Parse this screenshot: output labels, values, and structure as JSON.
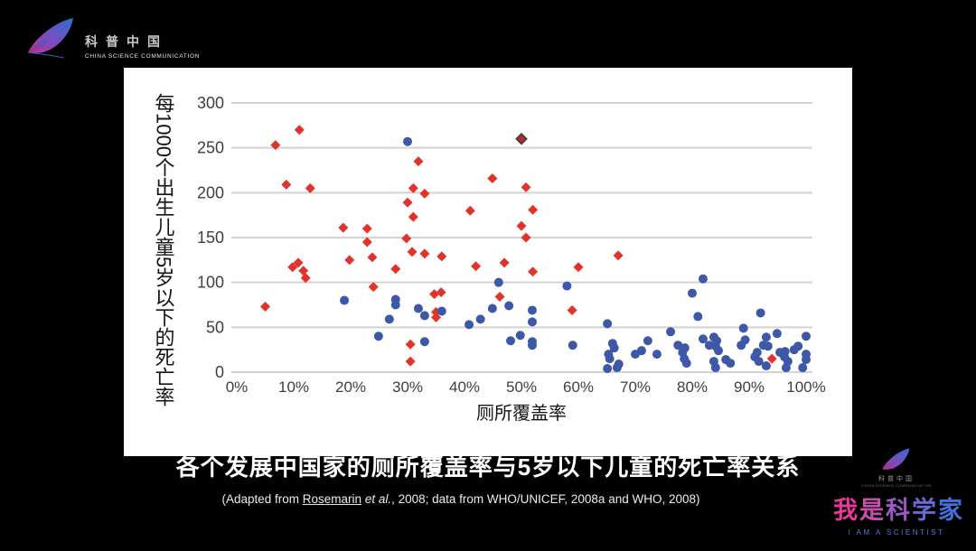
{
  "header_logo": {
    "cn": "科普中国",
    "en": "CHINA SCIENCE COMMUNICATION"
  },
  "chart_data": {
    "type": "scatter",
    "xlabel": "厕所覆盖率",
    "ylabel": "每1000个出生儿童5岁以下的死亡率",
    "x_ticks": [
      "0%",
      "10%",
      "20%",
      "30%",
      "40%",
      "50%",
      "60%",
      "70%",
      "80%",
      "90%",
      "100%"
    ],
    "y_ticks": [
      0,
      50,
      100,
      150,
      200,
      250,
      300
    ],
    "xlim": [
      0,
      100
    ],
    "ylim": [
      0,
      300
    ],
    "grid": "horizontal",
    "legend": "none",
    "grid_color": "#d3d3d3",
    "axis_text_color": "#3d3f45",
    "plot_bg": "#ffffff",
    "series": [
      {
        "name": "red-diamond",
        "marker": "diamond",
        "color": "#e2332a",
        "points": [
          [
            5,
            73
          ],
          [
            6.8,
            253
          ],
          [
            8.7,
            209
          ],
          [
            9.8,
            117
          ],
          [
            10.8,
            122
          ],
          [
            11,
            270
          ],
          [
            11.7,
            113
          ],
          [
            12.1,
            105
          ],
          [
            12.9,
            205
          ],
          [
            18.7,
            161
          ],
          [
            19.8,
            125
          ],
          [
            22.9,
            160
          ],
          [
            22.9,
            145
          ],
          [
            23.8,
            128
          ],
          [
            24,
            95
          ],
          [
            27.9,
            115
          ],
          [
            29.8,
            149
          ],
          [
            30,
            189
          ],
          [
            30.5,
            31
          ],
          [
            30.5,
            12
          ],
          [
            30.8,
            134
          ],
          [
            31,
            173
          ],
          [
            31,
            205
          ],
          [
            31.9,
            235
          ],
          [
            33,
            132
          ],
          [
            33,
            199
          ],
          [
            34.7,
            87
          ],
          [
            35,
            67
          ],
          [
            35,
            61
          ],
          [
            35.9,
            89
          ],
          [
            36,
            129
          ],
          [
            41,
            180
          ],
          [
            42,
            118
          ],
          [
            44.9,
            216
          ],
          [
            46.2,
            84
          ],
          [
            47,
            122
          ],
          [
            50,
            163
          ],
          [
            50.8,
            206
          ],
          [
            50.8,
            150
          ],
          [
            52,
            181
          ],
          [
            52,
            112
          ],
          [
            58.9,
            69
          ],
          [
            60,
            117
          ],
          [
            67,
            130
          ],
          [
            94,
            15
          ]
        ]
      },
      {
        "name": "dark-red-diamond",
        "marker": "diamond",
        "color": "#c32620",
        "stroke": "#454545",
        "points": [
          [
            50,
            260
          ]
        ]
      },
      {
        "name": "blue-circle",
        "marker": "circle",
        "color": "#3c58a7",
        "points": [
          [
            18.9,
            80
          ],
          [
            24.9,
            40
          ],
          [
            26.8,
            59
          ],
          [
            27.9,
            81
          ],
          [
            27.9,
            75
          ],
          [
            30,
            257
          ],
          [
            31.9,
            71
          ],
          [
            33,
            63
          ],
          [
            33,
            34
          ],
          [
            36,
            68
          ],
          [
            40.8,
            53
          ],
          [
            42.8,
            59
          ],
          [
            44.9,
            71
          ],
          [
            46,
            100
          ],
          [
            47.8,
            74
          ],
          [
            48.1,
            35
          ],
          [
            49.8,
            41
          ],
          [
            51.9,
            69
          ],
          [
            51.9,
            56
          ],
          [
            51.9,
            34
          ],
          [
            51.9,
            30
          ],
          [
            58,
            96
          ],
          [
            59,
            30
          ],
          [
            65.1,
            54
          ],
          [
            65.1,
            4
          ],
          [
            65.3,
            20
          ],
          [
            65.5,
            15
          ],
          [
            66,
            32
          ],
          [
            66.3,
            27
          ],
          [
            66.8,
            5
          ],
          [
            67.1,
            9
          ],
          [
            70,
            20
          ],
          [
            71.1,
            24
          ],
          [
            72.2,
            35
          ],
          [
            73.8,
            20
          ],
          [
            76.2,
            45
          ],
          [
            77.5,
            30
          ],
          [
            78.3,
            22
          ],
          [
            78.6,
            15
          ],
          [
            78.7,
            27
          ],
          [
            79,
            10
          ],
          [
            80,
            88
          ],
          [
            81,
            62
          ],
          [
            81.9,
            104
          ],
          [
            81.9,
            37
          ],
          [
            83,
            30
          ],
          [
            83.8,
            39
          ],
          [
            83.8,
            12
          ],
          [
            84.1,
            29
          ],
          [
            84.1,
            5
          ],
          [
            84.3,
            35
          ],
          [
            84.6,
            24
          ],
          [
            85.9,
            14
          ],
          [
            86.7,
            10
          ],
          [
            88.6,
            30
          ],
          [
            89,
            49
          ],
          [
            89.3,
            36
          ],
          [
            91,
            17
          ],
          [
            91.4,
            22
          ],
          [
            91.7,
            12
          ],
          [
            92,
            66
          ],
          [
            92.5,
            30
          ],
          [
            93,
            39
          ],
          [
            93,
            7
          ],
          [
            93.3,
            29
          ],
          [
            94.9,
            43
          ],
          [
            95.4,
            22
          ],
          [
            96.2,
            17
          ],
          [
            96.3,
            23
          ],
          [
            96.5,
            5
          ],
          [
            96.8,
            12
          ],
          [
            97.9,
            25
          ],
          [
            98.6,
            29
          ],
          [
            99.4,
            5
          ],
          [
            100,
            40
          ],
          [
            100,
            20
          ],
          [
            100,
            14
          ]
        ]
      }
    ]
  },
  "caption": {
    "title": "各个发展中国家的厕所覆盖率与5岁以下儿童的死亡率关系",
    "citation_prefix": "(Adapted from ",
    "citation_link": "Rosemarin",
    "citation_etal": " et al.",
    "citation_rest": ", 2008; data from WHO/UNICEF, 2008a and WHO, 2008)"
  },
  "footer_logo": {
    "small_cn": "科普中国",
    "small_en": "CHINA SCIENCE COMMUNICATION",
    "title": "我是科学家",
    "title_colors": [
      "#e8399b",
      "#c94fae",
      "#9a58c2",
      "#6a68d2",
      "#3f72dd"
    ],
    "en": "I AM A SCIENTIST"
  },
  "colors": {
    "page_bg": "#000000",
    "card_bg": "#ffffff",
    "red_series": "#e2332a",
    "blue_series": "#3c58a7",
    "brand_pink": "#d6308f",
    "brand_blue": "#2e6fd0"
  }
}
